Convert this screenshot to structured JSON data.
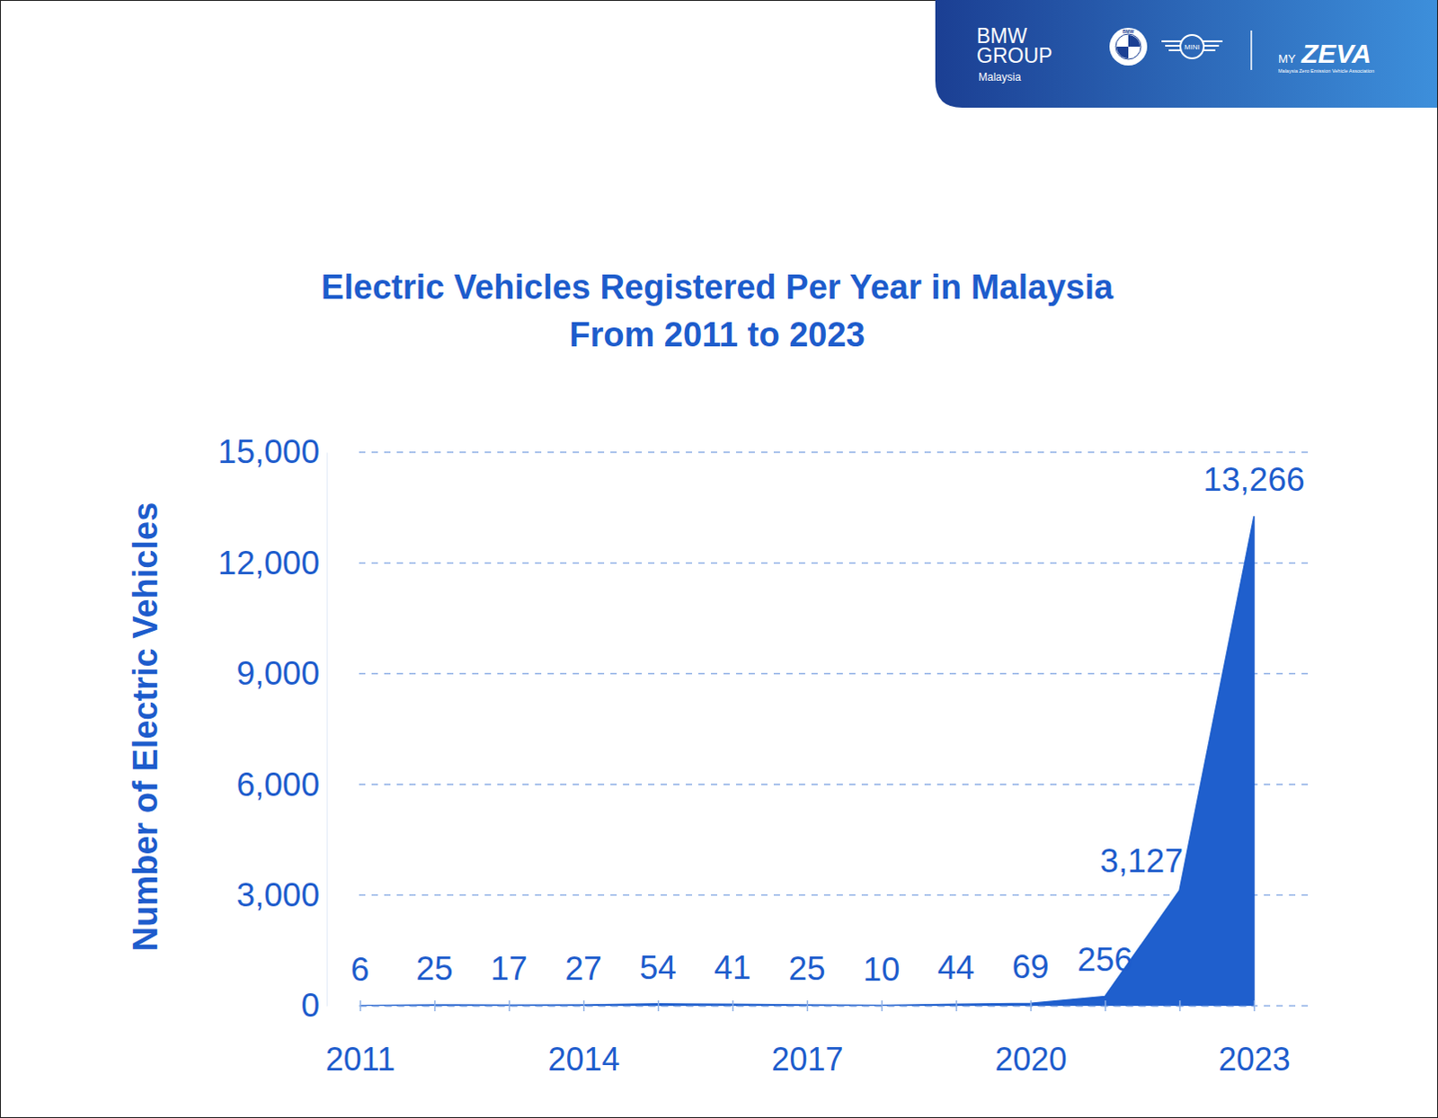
{
  "chart_data": {
    "type": "area",
    "title": "Electric Vehicles Registered Per Year in Malaysia",
    "subtitle": "From 2011 to 2023",
    "y_label": "Number of Electric Vehicles",
    "categories": [
      "2011",
      null,
      null,
      "2014",
      null,
      null,
      "2017",
      null,
      null,
      "2020",
      null,
      null,
      "2023"
    ],
    "values": [
      6,
      25,
      17,
      27,
      54,
      41,
      25,
      10,
      44,
      69,
      256,
      3127,
      13266
    ],
    "value_labels": [
      "6",
      "25",
      "17",
      "27",
      "54",
      "41",
      "25",
      "10",
      "44",
      "69",
      "256",
      "3,127",
      "13,266"
    ],
    "color": "#1f5fcd",
    "ylim": [
      0,
      15000
    ],
    "yticks": [
      0,
      {
        "value": 3000,
        "label": "3,000"
      },
      {
        "value": 6000,
        "label": "6,000"
      },
      {
        "value": 9000,
        "label": "9,000"
      },
      {
        "value": 12000,
        "label": "12,000"
      },
      {
        "value": 15000,
        "label": "15,000"
      }
    ],
    "grid": true,
    "data_labels": true
  },
  "header": {
    "brand_lines": [
      "BMW",
      "GROUP"
    ],
    "region": "Malaysia",
    "logos": [
      "BMW",
      "MINI"
    ],
    "partner_prefix": "MY",
    "partner": "ZEVA",
    "partner_name": "Malaysia Zero Emission Vehicle Association"
  }
}
